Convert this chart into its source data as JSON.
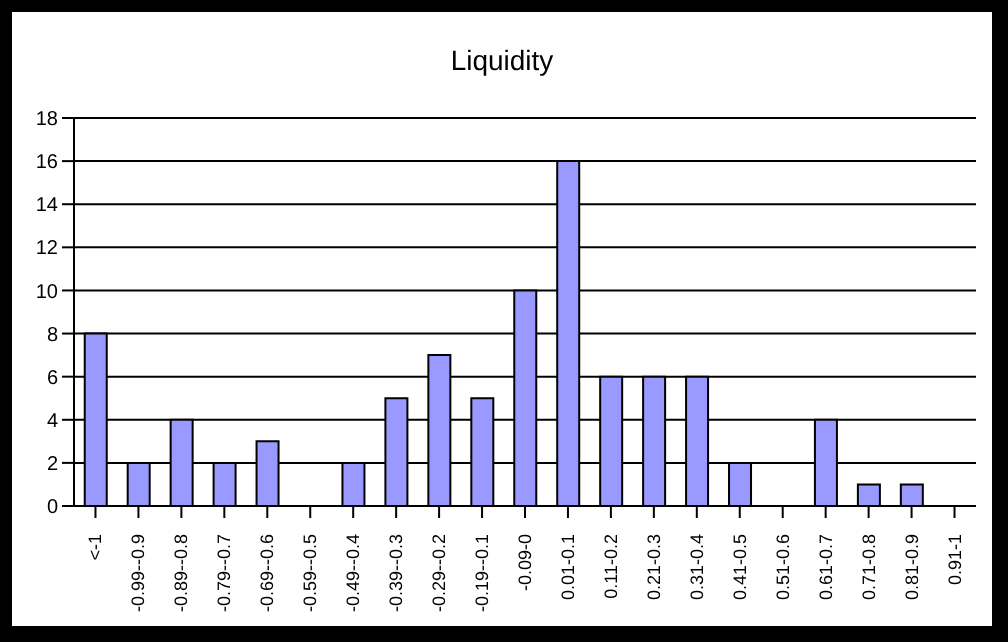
{
  "chart_data": {
    "type": "bar",
    "title": "Liquidity",
    "categories": [
      "<-1",
      "-0.99--0.9",
      "-0.89--0.8",
      "-0.79--0.7",
      "-0.69--0.6",
      "-0.59--0.5",
      "-0.49--0.4",
      "-0.39--0.3",
      "-0.29--0.2",
      "-0.19--0.1",
      "-0.09-0",
      "0.01-0.1",
      "0.11-0.2",
      "0.21-0.3",
      "0.31-0.4",
      "0.41-0.5",
      "0.51-0.6",
      "0.61-0.7",
      "0.71-0.8",
      "0.81-0.9",
      "0.91-1"
    ],
    "values": [
      8,
      2,
      4,
      2,
      3,
      0,
      2,
      5,
      7,
      5,
      10,
      16,
      6,
      6,
      6,
      2,
      0,
      4,
      1,
      1,
      0
    ],
    "color": "#9999ff",
    "ylim": [
      0,
      18
    ],
    "yticks": [
      0,
      2,
      4,
      6,
      8,
      10,
      12,
      14,
      16,
      18
    ],
    "grid": "y"
  }
}
